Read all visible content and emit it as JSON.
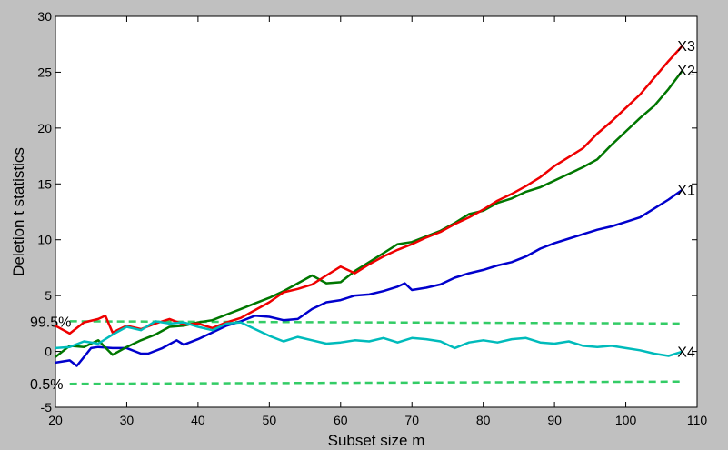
{
  "chart_data": {
    "type": "line",
    "title": "",
    "xlabel": "Subset size m",
    "ylabel": "Deletion t statistics",
    "xlim": [
      20,
      110
    ],
    "ylim": [
      -5,
      30
    ],
    "xticks": [
      20,
      30,
      40,
      50,
      60,
      70,
      80,
      90,
      100,
      110
    ],
    "yticks": [
      -5,
      0,
      5,
      10,
      15,
      20,
      25,
      30
    ],
    "grid": false,
    "colors": {
      "background": "#c0c0c0",
      "plot_area": "#ffffff",
      "X1": "#0000cc",
      "X2": "#007700",
      "X3": "#ee0000",
      "X4": "#00bbbb",
      "bands": "#33cc66"
    },
    "series": [
      {
        "name": "X1",
        "x": [
          20,
          22,
          23,
          24,
          25,
          26,
          28,
          30,
          32,
          33,
          35,
          37,
          38,
          40,
          42,
          44,
          46,
          48,
          50,
          52,
          54,
          56,
          58,
          60,
          62,
          64,
          66,
          68,
          69,
          70,
          72,
          74,
          76,
          78,
          80,
          82,
          84,
          86,
          88,
          90,
          92,
          94,
          96,
          98,
          100,
          102,
          104,
          106,
          108
        ],
        "y": [
          -1.0,
          -0.8,
          -1.3,
          -0.5,
          0.3,
          0.4,
          0.3,
          0.3,
          -0.2,
          -0.2,
          0.3,
          1.0,
          0.6,
          1.1,
          1.7,
          2.3,
          2.7,
          3.2,
          3.1,
          2.8,
          2.9,
          3.8,
          4.4,
          4.6,
          5.0,
          5.1,
          5.4,
          5.8,
          6.1,
          5.5,
          5.7,
          6.0,
          6.6,
          7.0,
          7.3,
          7.7,
          8.0,
          8.5,
          9.2,
          9.7,
          10.1,
          10.5,
          10.9,
          11.2,
          11.6,
          12.0,
          12.8,
          13.6,
          14.5
        ]
      },
      {
        "name": "X2",
        "x": [
          20,
          22,
          24,
          26,
          28,
          30,
          32,
          34,
          36,
          38,
          40,
          42,
          44,
          46,
          48,
          50,
          52,
          54,
          56,
          58,
          60,
          62,
          64,
          66,
          68,
          70,
          72,
          74,
          76,
          78,
          80,
          82,
          84,
          86,
          88,
          90,
          92,
          94,
          96,
          98,
          100,
          102,
          104,
          106,
          108
        ],
        "y": [
          -0.5,
          0.5,
          0.4,
          1.0,
          -0.3,
          0.4,
          1.0,
          1.5,
          2.2,
          2.3,
          2.6,
          2.8,
          3.3,
          3.8,
          4.3,
          4.8,
          5.4,
          6.1,
          6.8,
          6.1,
          6.2,
          7.2,
          8.0,
          8.8,
          9.6,
          9.8,
          10.3,
          10.8,
          11.5,
          12.3,
          12.6,
          13.3,
          13.7,
          14.3,
          14.7,
          15.3,
          15.9,
          16.5,
          17.2,
          18.5,
          19.7,
          20.9,
          22.0,
          23.5,
          25.2
        ]
      },
      {
        "name": "X3",
        "x": [
          20,
          22,
          24,
          26,
          27,
          28,
          30,
          32,
          34,
          36,
          38,
          40,
          42,
          44,
          46,
          48,
          50,
          52,
          54,
          56,
          58,
          60,
          62,
          64,
          66,
          68,
          70,
          72,
          74,
          76,
          78,
          80,
          82,
          84,
          86,
          88,
          90,
          92,
          94,
          96,
          98,
          100,
          102,
          104,
          106,
          108
        ],
        "y": [
          2.3,
          1.6,
          2.6,
          2.9,
          3.2,
          1.7,
          2.3,
          2.0,
          2.5,
          2.9,
          2.4,
          2.5,
          2.1,
          2.6,
          3.0,
          3.7,
          4.4,
          5.3,
          5.6,
          6.0,
          6.8,
          7.6,
          7.0,
          7.8,
          8.5,
          9.1,
          9.6,
          10.2,
          10.7,
          11.4,
          12.0,
          12.7,
          13.5,
          14.1,
          14.8,
          15.6,
          16.6,
          17.4,
          18.2,
          19.5,
          20.6,
          21.8,
          23.0,
          24.5,
          26.0,
          27.4
        ]
      },
      {
        "name": "X4",
        "x": [
          20,
          22,
          24,
          26,
          28,
          30,
          32,
          34,
          36,
          38,
          40,
          42,
          44,
          46,
          48,
          50,
          52,
          54,
          56,
          58,
          60,
          62,
          64,
          66,
          68,
          70,
          72,
          74,
          76,
          78,
          80,
          82,
          84,
          86,
          88,
          90,
          92,
          94,
          96,
          98,
          100,
          102,
          104,
          106,
          108
        ],
        "y": [
          0.3,
          0.4,
          0.9,
          0.7,
          1.5,
          2.2,
          1.9,
          2.7,
          2.5,
          2.6,
          2.2,
          1.9,
          2.5,
          2.6,
          2.0,
          1.4,
          0.9,
          1.3,
          1.0,
          0.7,
          0.8,
          1.0,
          0.9,
          1.2,
          0.8,
          1.2,
          1.1,
          0.9,
          0.3,
          0.8,
          1.0,
          0.8,
          1.1,
          1.2,
          0.8,
          0.7,
          0.9,
          0.5,
          0.4,
          0.5,
          0.3,
          0.1,
          -0.2,
          -0.4,
          0.0
        ]
      }
    ],
    "bands": [
      {
        "name": "99.5%",
        "y": [
          2.7,
          2.5
        ]
      },
      {
        "name": "0.5%",
        "y": [
          -2.9,
          -2.7
        ]
      }
    ]
  }
}
